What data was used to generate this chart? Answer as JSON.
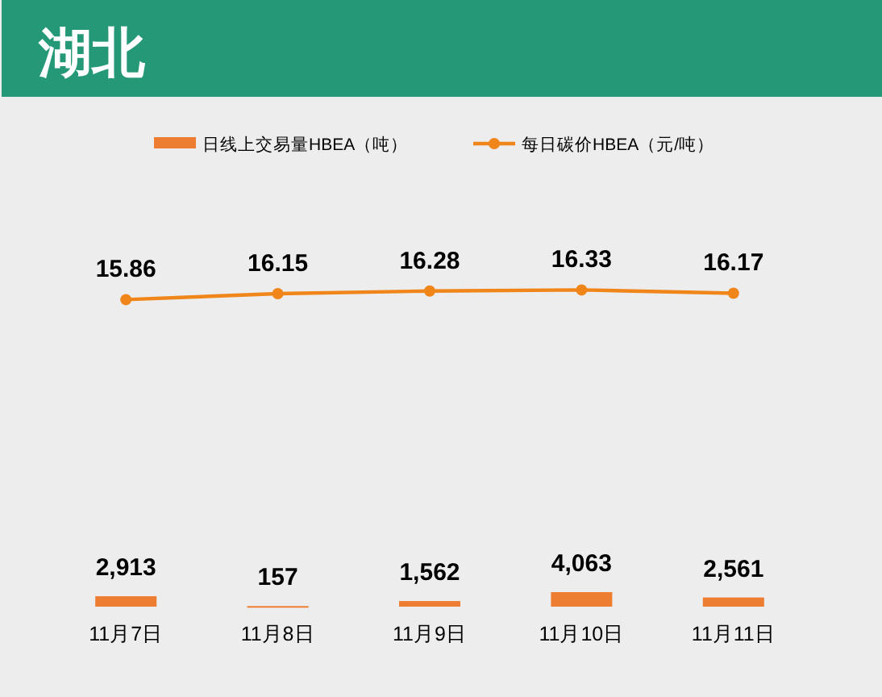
{
  "chart_data": [
    {
      "type": "line",
      "title": "湖北",
      "categories": [
        null,
        null,
        null,
        null,
        null
      ],
      "series": [
        {
          "name": "每日碳价HBEA（元/吨）",
          "color": "#f08519",
          "values": [
            15.86,
            16.15,
            16.28,
            16.33,
            16.17
          ],
          "value_labels": [
            "15.86",
            "16.15",
            "16.28",
            "16.33",
            "16.17"
          ]
        }
      ],
      "legend": "top",
      "marker": "circle"
    },
    {
      "type": "bar",
      "categories": [
        "11月7日",
        "11月8日",
        "11月9日",
        "11月10日",
        "11月11日"
      ],
      "series": [
        {
          "name": "日线上交易量HBEA（吨）",
          "color": "#ed7d31",
          "values": [
            2913,
            157,
            1562,
            4063,
            2561
          ],
          "value_labels": [
            "2,913",
            "157",
            "1,562",
            "4,063",
            "2,561"
          ]
        }
      ],
      "tick_labels": "x",
      "legend": "top"
    }
  ]
}
